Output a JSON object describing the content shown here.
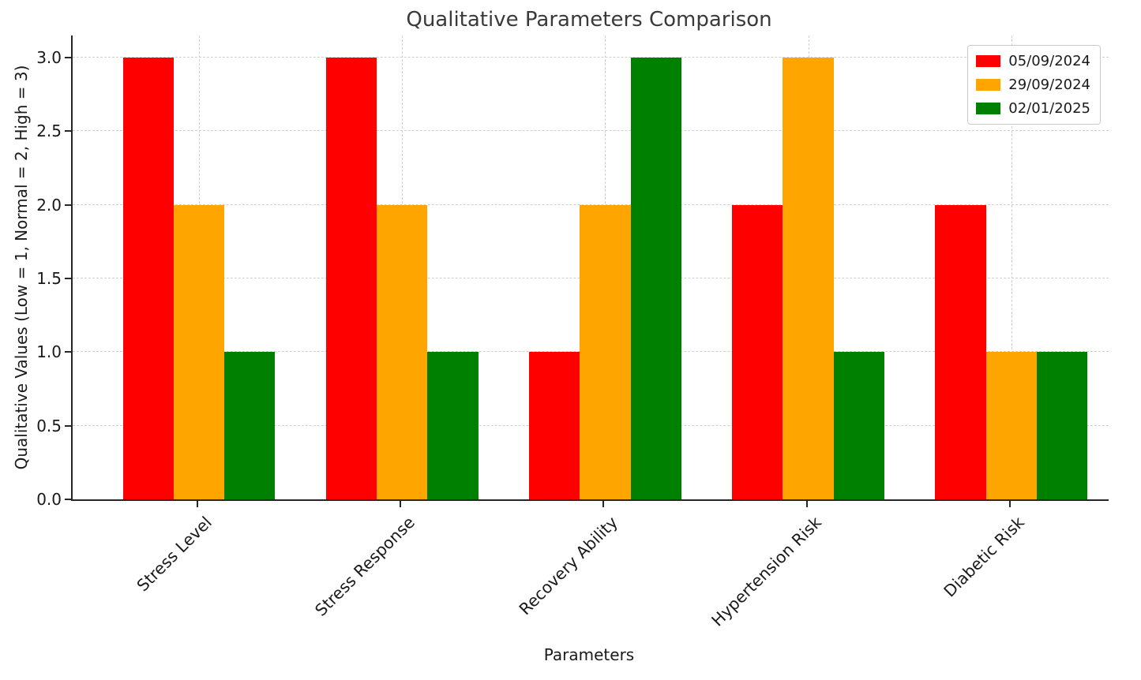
{
  "chart_data": {
    "type": "bar",
    "title": "Qualitative Parameters Comparison",
    "xlabel": "Parameters",
    "ylabel": "Qualitative Values (Low = 1, Normal = 2, High = 3)",
    "categories": [
      "Stress Level",
      "Stress Response",
      "Recovery Ability",
      "Hypertension Risk",
      "Diabetic Risk"
    ],
    "series": [
      {
        "name": "05/09/2024",
        "color": "#ff0000",
        "values": [
          3,
          3,
          1,
          2,
          2
        ]
      },
      {
        "name": "29/09/2024",
        "color": "#ffa500",
        "values": [
          2,
          2,
          2,
          3,
          1
        ]
      },
      {
        "name": "02/01/2025",
        "color": "#008000",
        "values": [
          1,
          1,
          3,
          1,
          1
        ]
      }
    ],
    "yticks": [
      0.0,
      0.5,
      1.0,
      1.5,
      2.0,
      2.5,
      3.0
    ],
    "ylim": [
      0,
      3.15
    ],
    "grid": "dashed",
    "legend_position": "upper right",
    "background_color": "#ffffff",
    "grid_color": "#cfcfcf"
  }
}
